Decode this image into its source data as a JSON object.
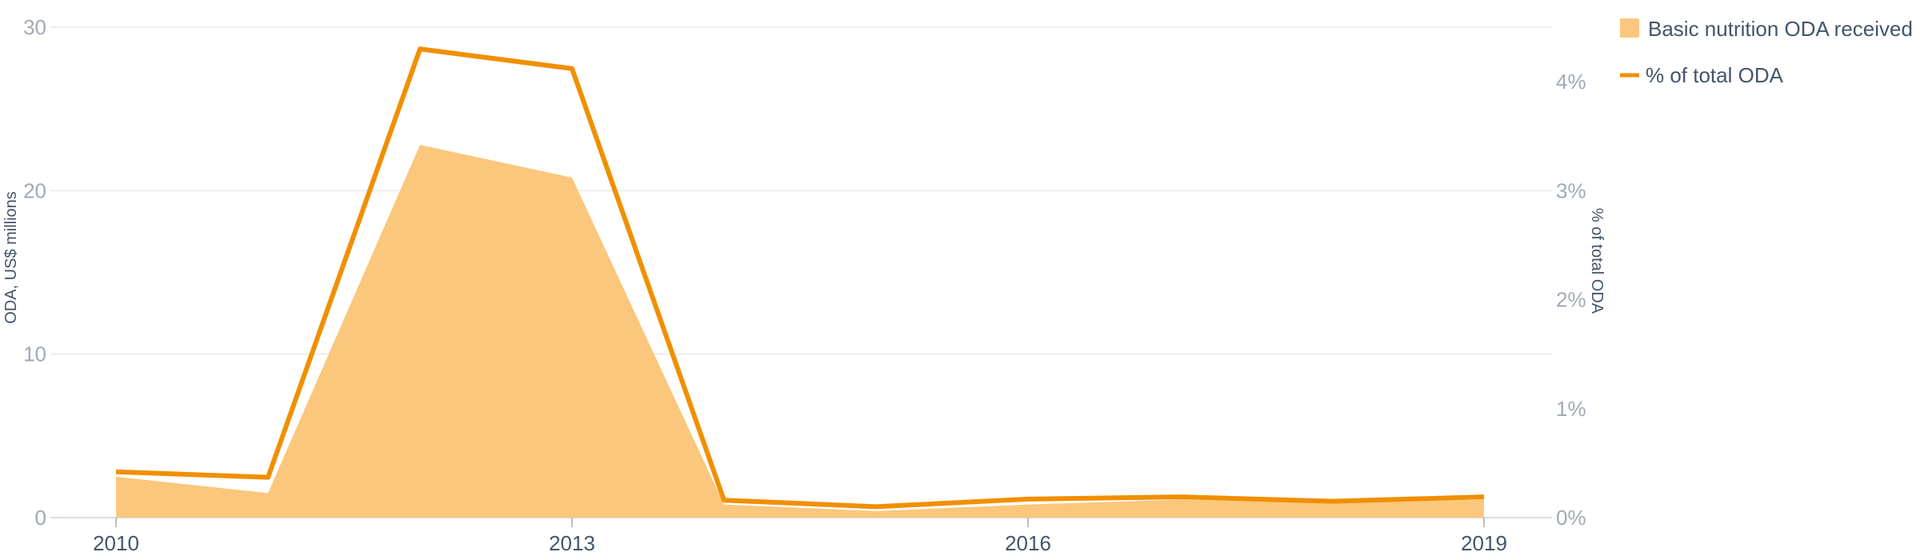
{
  "chart_data": {
    "type": "area",
    "x": [
      2010,
      2011,
      2012,
      2013,
      2014,
      2015,
      2016,
      2017,
      2018,
      2019
    ],
    "x_tick_labels": [
      "2010",
      "2013",
      "2016",
      "2019"
    ],
    "series": [
      {
        "name": "Basic nutrition ODA received",
        "type": "area",
        "axis": "left",
        "color": "#fbc77c",
        "values": [
          2.5,
          1.5,
          22.8,
          20.8,
          0.8,
          0.4,
          0.8,
          1.1,
          0.9,
          1.1
        ]
      },
      {
        "name": "% of total ODA",
        "type": "line",
        "axis": "right",
        "color": "#f18f01",
        "values": [
          0.42,
          0.37,
          4.3,
          4.12,
          0.16,
          0.1,
          0.17,
          0.19,
          0.15,
          0.19
        ]
      }
    ],
    "left_axis": {
      "title": "ODA, US$ millions",
      "ylim": [
        0,
        30
      ],
      "ticks": [
        0,
        10,
        20,
        30
      ],
      "tick_labels": [
        "0",
        "10",
        "20",
        "30"
      ]
    },
    "right_axis": {
      "title": "% of total ODA",
      "ylim": [
        0,
        4.5
      ],
      "ticks": [
        0,
        1,
        2,
        3,
        4
      ],
      "tick_labels": [
        "0%",
        "1%",
        "2%",
        "3%",
        "4%"
      ]
    },
    "grid": true,
    "legend_position": "top-right"
  }
}
